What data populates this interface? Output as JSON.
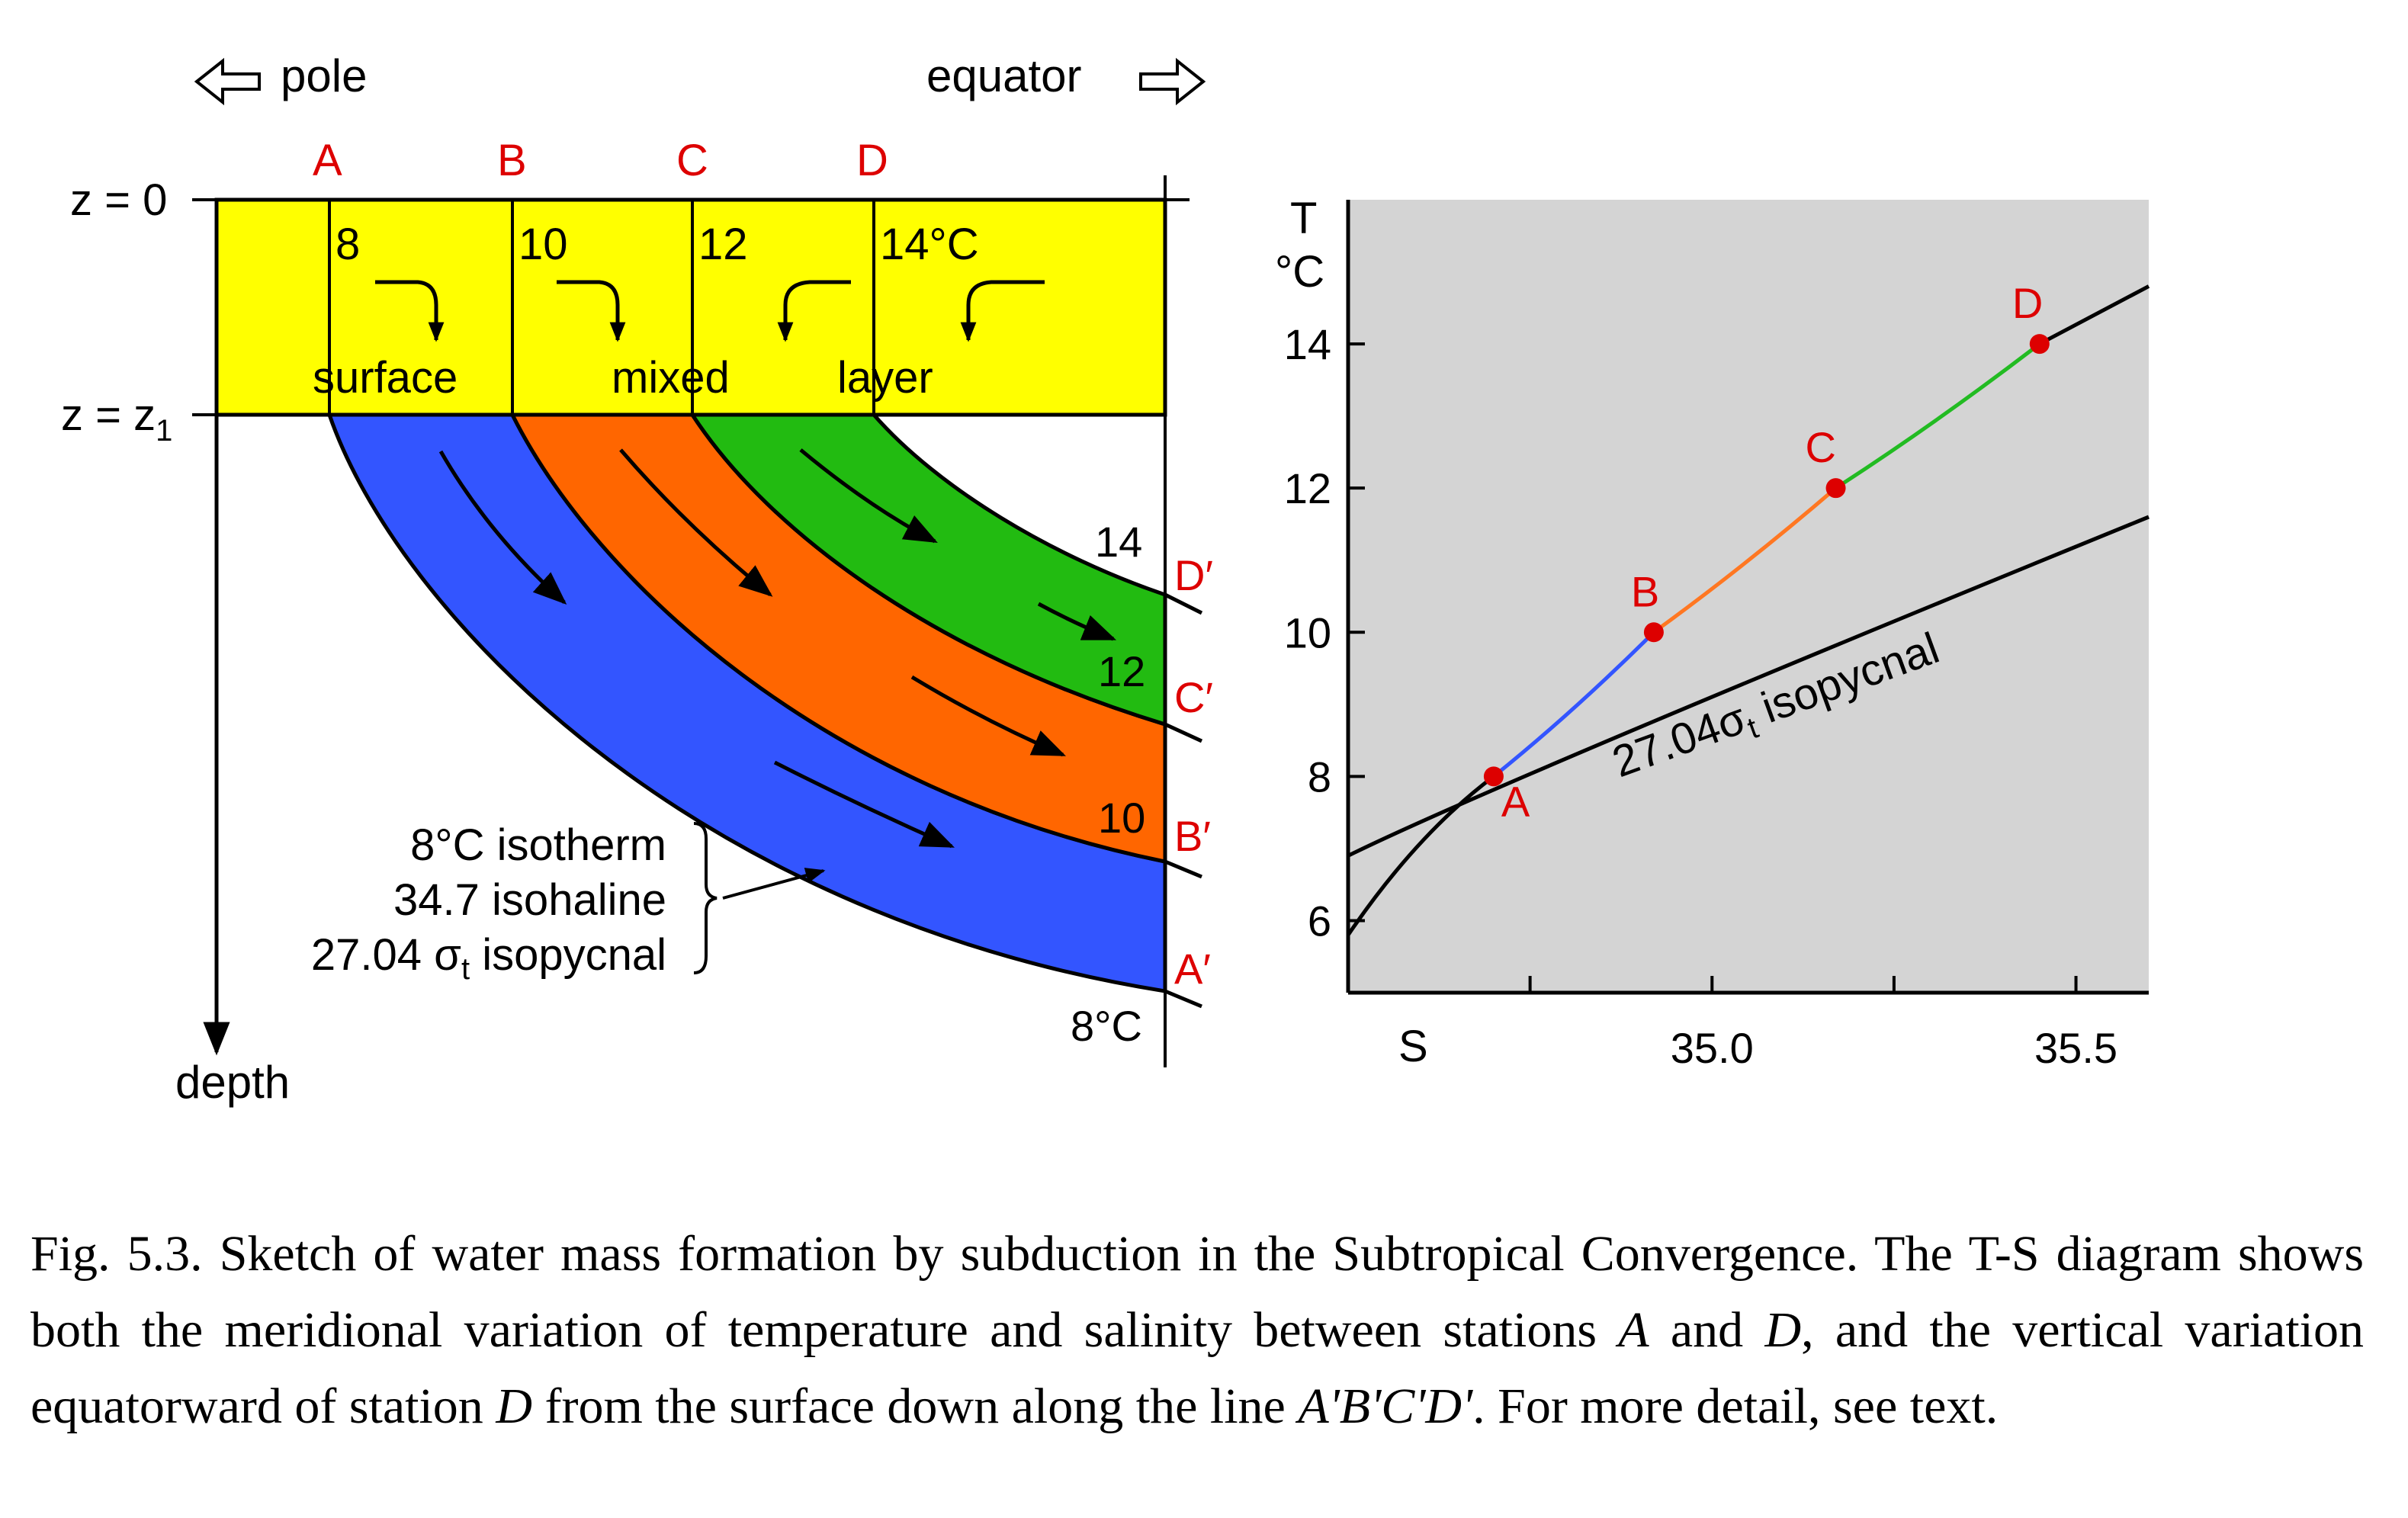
{
  "colors": {
    "mixed_layer": "#ffff00",
    "layer_A": "#3355ff",
    "layer_B": "#ff6600",
    "layer_C": "#22bb11",
    "station_label": "#dd0000",
    "ts_background": "#d4d4d4",
    "segment_AB": "#3355ff",
    "segment_BC": "#ff7722",
    "segment_CD": "#22bb22"
  },
  "section": {
    "pole_label": "pole",
    "equator_label": "equator",
    "pole_arrow_icon": "left-hollow-arrow-icon",
    "equator_arrow_icon": "right-hollow-arrow-icon",
    "z0_label": "z = 0",
    "z1_prefix": "z = z",
    "z1_sub": "1",
    "depth_label": "depth",
    "stations": [
      {
        "name": "A",
        "temp": "8"
      },
      {
        "name": "B",
        "temp": "10"
      },
      {
        "name": "C",
        "temp": "12"
      },
      {
        "name": "D",
        "temp": "14°C"
      }
    ],
    "mixed_layer_words": [
      "surface",
      "mixed",
      "layer"
    ],
    "deep_labels": [
      {
        "name": "D′",
        "temp": "14"
      },
      {
        "name": "C′",
        "temp": "12"
      },
      {
        "name": "B′",
        "temp": "10"
      },
      {
        "name": "A′",
        "temp": "8°C"
      }
    ],
    "annotation": {
      "line1": "8°C isotherm",
      "line2": "34.7 isohaline",
      "line3_prefix": "27.04 σ",
      "line3_sub": "t",
      "line3_suffix": " isopycnal"
    }
  },
  "ts_diagram": {
    "y_label_top": "T",
    "y_label_unit": "°C",
    "x_label": "S",
    "y_ticks": [
      "6",
      "8",
      "10",
      "12",
      "14"
    ],
    "x_ticks": [
      "35.0",
      "35.5"
    ],
    "isopycnal_prefix": "27.04",
    "isopycnal_sigma": "σ",
    "isopycnal_sub": "t",
    "isopycnal_suffix": " isopycnal",
    "points": [
      {
        "name": "A",
        "S": 34.7,
        "T": 8
      },
      {
        "name": "B",
        "S": 34.92,
        "T": 10
      },
      {
        "name": "C",
        "S": 35.17,
        "T": 12
      },
      {
        "name": "D",
        "S": 35.45,
        "T": 14
      }
    ],
    "xlim": [
      34.5,
      35.6
    ],
    "ylim": [
      5,
      16
    ]
  },
  "caption": {
    "fig_num": "Fig. 5.3.",
    "t1": " Sketch of water mass formation by subduction in the Subtropical Convergence. The T-S diagram shows both the meridional variation of temperature and salinity between stations ",
    "a": "A",
    "t2": " and ",
    "d": "D",
    "t3": ", and the vertical variation equatorward of station ",
    "d2": "D",
    "t4": " from the surface down along the line ",
    "line": "A'B'C'D'",
    "t5": ". For more detail, see text."
  }
}
